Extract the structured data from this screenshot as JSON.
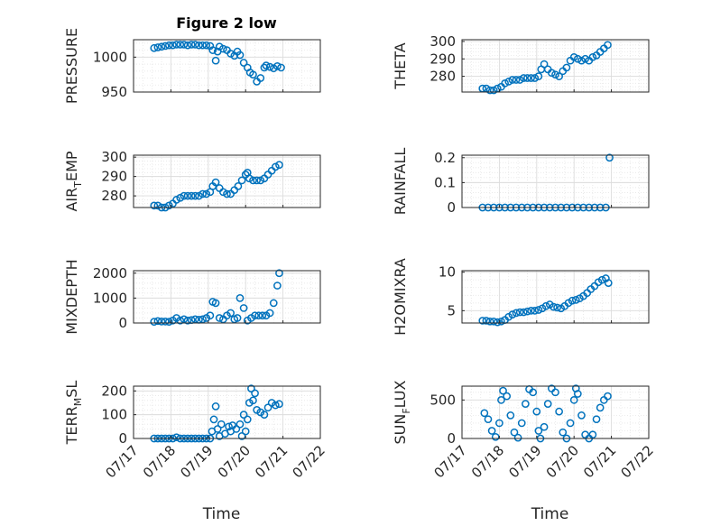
{
  "figure": {
    "title": "Figure 2 low"
  },
  "colors": {
    "marker": "#0072BD",
    "axis": "#262626",
    "grid": "#DCDCDC"
  },
  "chart_data": [
    {
      "id": "pressure",
      "type": "scatter",
      "ylabel": "PRESSURE",
      "ylabel_sub": "",
      "ylabel_post": "",
      "xlabel": "",
      "ylim": [
        950,
        1025
      ],
      "yticks": [
        950,
        1000
      ],
      "xlim": [
        0,
        5
      ],
      "xtick_labels": [
        "07/17",
        "07/18",
        "07/19",
        "07/20",
        "07/21",
        "07/22"
      ],
      "grid": true,
      "x": [
        0.55,
        0.65,
        0.75,
        0.85,
        0.95,
        1.05,
        1.15,
        1.25,
        1.35,
        1.45,
        1.55,
        1.65,
        1.75,
        1.85,
        1.95,
        2.05,
        2.12,
        2.2,
        2.25,
        2.3,
        2.4,
        2.5,
        2.6,
        2.7,
        2.78,
        2.85,
        2.95,
        3.05,
        3.12,
        3.2,
        3.3,
        3.4,
        3.5,
        3.55,
        3.65,
        3.75,
        3.85,
        3.95
      ],
      "y": [
        1013,
        1014,
        1015,
        1016,
        1017,
        1017,
        1018,
        1018,
        1018,
        1017,
        1018,
        1018,
        1017,
        1017,
        1017,
        1016,
        1010,
        995,
        1008,
        1015,
        1012,
        1010,
        1005,
        1002,
        1008,
        1003,
        992,
        985,
        978,
        975,
        965,
        970,
        985,
        988,
        986,
        984,
        987,
        985
      ]
    },
    {
      "id": "theta",
      "type": "scatter",
      "ylabel": "THETA",
      "ylabel_sub": "",
      "ylabel_post": "",
      "xlabel": "",
      "ylim": [
        271,
        301
      ],
      "yticks": [
        280,
        290,
        300
      ],
      "xlim": [
        0,
        5
      ],
      "xtick_labels": [
        "07/17",
        "07/18",
        "07/19",
        "07/20",
        "07/21",
        "07/22"
      ],
      "grid": true,
      "x": [
        0.55,
        0.65,
        0.75,
        0.85,
        0.95,
        1.05,
        1.15,
        1.25,
        1.35,
        1.45,
        1.55,
        1.65,
        1.75,
        1.85,
        1.95,
        2.05,
        2.12,
        2.2,
        2.3,
        2.4,
        2.5,
        2.6,
        2.7,
        2.8,
        2.9,
        3.0,
        3.1,
        3.2,
        3.3,
        3.4,
        3.5,
        3.6,
        3.7,
        3.8,
        3.9
      ],
      "y": [
        273,
        273,
        272,
        272,
        273,
        274,
        276,
        277,
        278,
        278,
        278,
        279,
        279,
        279,
        279,
        280,
        284,
        287,
        284,
        282,
        281,
        280,
        283,
        285,
        289,
        291,
        290,
        289,
        290,
        289,
        291,
        292,
        294,
        296,
        298
      ]
    },
    {
      "id": "air_temp",
      "type": "scatter",
      "ylabel": "AIR",
      "ylabel_sub": "T",
      "ylabel_post": "EMP",
      "xlabel": "",
      "ylim": [
        274,
        301
      ],
      "yticks": [
        280,
        290,
        300
      ],
      "xlim": [
        0,
        5
      ],
      "xtick_labels": [
        "07/17",
        "07/18",
        "07/19",
        "07/20",
        "07/21",
        "07/22"
      ],
      "grid": true,
      "x": [
        0.55,
        0.65,
        0.75,
        0.85,
        0.95,
        1.05,
        1.15,
        1.25,
        1.35,
        1.45,
        1.55,
        1.65,
        1.75,
        1.85,
        1.95,
        2.05,
        2.12,
        2.2,
        2.3,
        2.4,
        2.5,
        2.6,
        2.7,
        2.8,
        2.9,
        3.0,
        3.05,
        3.1,
        3.2,
        3.3,
        3.4,
        3.5,
        3.6,
        3.7,
        3.8,
        3.9
      ],
      "y": [
        275,
        275,
        274,
        274,
        275,
        276,
        278,
        279,
        280,
        280,
        280,
        280,
        280,
        281,
        281,
        282,
        285,
        287,
        284,
        282,
        281,
        281,
        283,
        285,
        288,
        291,
        292,
        289,
        288,
        288,
        288,
        289,
        291,
        293,
        295,
        296
      ]
    },
    {
      "id": "rainfall",
      "type": "scatter",
      "ylabel": "RAINFALL",
      "ylabel_sub": "",
      "ylabel_post": "",
      "xlabel": "",
      "ylim": [
        0,
        0.21
      ],
      "yticks": [
        0,
        0.1,
        0.2
      ],
      "xlim": [
        0,
        5
      ],
      "xtick_labels": [
        "07/17",
        "07/18",
        "07/19",
        "07/20",
        "07/21",
        "07/22"
      ],
      "grid": true,
      "x": [
        0.55,
        0.7,
        0.85,
        1.0,
        1.15,
        1.3,
        1.45,
        1.6,
        1.75,
        1.9,
        2.05,
        2.2,
        2.35,
        2.5,
        2.65,
        2.8,
        2.95,
        3.1,
        3.25,
        3.4,
        3.55,
        3.7,
        3.85,
        3.95
      ],
      "y": [
        0,
        0,
        0,
        0,
        0,
        0,
        0,
        0,
        0,
        0,
        0,
        0,
        0,
        0,
        0,
        0,
        0,
        0,
        0,
        0,
        0,
        0,
        0,
        0.2
      ]
    },
    {
      "id": "mixdepth",
      "type": "scatter",
      "ylabel": "MIXDEPTH",
      "ylabel_sub": "",
      "ylabel_post": "",
      "xlabel": "",
      "ylim": [
        0,
        2100
      ],
      "yticks": [
        0,
        1000,
        2000
      ],
      "xlim": [
        0,
        5
      ],
      "xtick_labels": [
        "07/17",
        "07/18",
        "07/19",
        "07/20",
        "07/21",
        "07/22"
      ],
      "grid": true,
      "x": [
        0.55,
        0.65,
        0.75,
        0.85,
        0.95,
        1.05,
        1.15,
        1.25,
        1.35,
        1.45,
        1.55,
        1.65,
        1.75,
        1.85,
        1.95,
        2.05,
        2.12,
        2.2,
        2.3,
        2.4,
        2.5,
        2.6,
        2.7,
        2.78,
        2.85,
        2.95,
        3.05,
        3.15,
        3.25,
        3.35,
        3.45,
        3.55,
        3.65,
        3.75,
        3.85,
        3.9
      ],
      "y": [
        50,
        80,
        60,
        60,
        50,
        100,
        200,
        100,
        150,
        100,
        120,
        150,
        130,
        150,
        200,
        300,
        850,
        800,
        200,
        150,
        300,
        400,
        150,
        200,
        1000,
        600,
        100,
        200,
        300,
        300,
        300,
        300,
        400,
        800,
        1500,
        2000
      ]
    },
    {
      "id": "h2omixra",
      "type": "scatter",
      "ylabel": "H2OMIXRA",
      "ylabel_sub": "",
      "ylabel_post": "",
      "xlabel": "",
      "ylim": [
        3.4,
        10.2
      ],
      "yticks": [
        5,
        10
      ],
      "xlim": [
        0,
        5
      ],
      "xtick_labels": [
        "07/17",
        "07/18",
        "07/19",
        "07/20",
        "07/21",
        "07/22"
      ],
      "grid": true,
      "x": [
        0.55,
        0.65,
        0.75,
        0.85,
        0.95,
        1.05,
        1.15,
        1.25,
        1.35,
        1.45,
        1.55,
        1.65,
        1.75,
        1.85,
        1.95,
        2.05,
        2.15,
        2.25,
        2.35,
        2.45,
        2.55,
        2.65,
        2.75,
        2.85,
        2.95,
        3.05,
        3.15,
        3.25,
        3.35,
        3.45,
        3.55,
        3.65,
        3.75,
        3.85,
        3.92
      ],
      "y": [
        3.7,
        3.7,
        3.6,
        3.6,
        3.5,
        3.6,
        3.8,
        4.2,
        4.5,
        4.7,
        4.8,
        4.8,
        4.9,
        5.0,
        5.0,
        5.1,
        5.3,
        5.6,
        5.8,
        5.5,
        5.4,
        5.3,
        5.6,
        6.0,
        6.3,
        6.4,
        6.6,
        6.9,
        7.3,
        7.8,
        8.2,
        8.7,
        9.0,
        9.2,
        8.6
      ]
    },
    {
      "id": "terr_msl",
      "type": "scatter",
      "ylabel": "TERR",
      "ylabel_sub": "M",
      "ylabel_post": "SL",
      "xlabel": "Time",
      "ylim": [
        0,
        220
      ],
      "yticks": [
        0,
        100,
        200
      ],
      "xlim": [
        0,
        5
      ],
      "xtick_labels": [
        "07/17",
        "07/18",
        "07/19",
        "07/20",
        "07/21",
        "07/22"
      ],
      "grid": true,
      "x": [
        0.55,
        0.65,
        0.75,
        0.85,
        0.95,
        1.05,
        1.15,
        1.25,
        1.35,
        1.45,
        1.55,
        1.65,
        1.75,
        1.85,
        1.95,
        2.05,
        2.1,
        2.15,
        2.2,
        2.25,
        2.3,
        2.35,
        2.45,
        2.55,
        2.6,
        2.65,
        2.75,
        2.85,
        2.9,
        2.95,
        3.0,
        3.05,
        3.1,
        3.15,
        3.2,
        3.25,
        3.3,
        3.4,
        3.5,
        3.6,
        3.7,
        3.8,
        3.9
      ],
      "y": [
        0,
        0,
        0,
        0,
        0,
        0,
        5,
        0,
        0,
        0,
        0,
        0,
        0,
        0,
        0,
        0,
        30,
        80,
        135,
        40,
        10,
        60,
        20,
        50,
        30,
        55,
        40,
        60,
        10,
        100,
        30,
        80,
        150,
        210,
        160,
        190,
        120,
        110,
        100,
        130,
        150,
        140,
        145
      ]
    },
    {
      "id": "sun_flux",
      "type": "scatter",
      "ylabel": "SUN",
      "ylabel_sub": "F",
      "ylabel_post": "LUX",
      "xlabel": "Time",
      "ylim": [
        0,
        680
      ],
      "yticks": [
        0,
        500
      ],
      "xlim": [
        0,
        5
      ],
      "xtick_labels": [
        "07/17",
        "07/18",
        "07/19",
        "07/20",
        "07/21",
        "07/22"
      ],
      "grid": true,
      "x": [
        0.6,
        0.7,
        0.8,
        0.9,
        1.0,
        1.05,
        1.1,
        1.2,
        1.3,
        1.4,
        1.5,
        1.6,
        1.7,
        1.8,
        1.9,
        2.0,
        2.05,
        2.1,
        2.2,
        2.3,
        2.4,
        2.5,
        2.6,
        2.7,
        2.8,
        2.9,
        3.0,
        3.05,
        3.1,
        3.2,
        3.3,
        3.4,
        3.5,
        3.6,
        3.7,
        3.8,
        3.9
      ],
      "y": [
        330,
        250,
        100,
        20,
        200,
        500,
        620,
        550,
        300,
        80,
        10,
        200,
        450,
        640,
        600,
        350,
        100,
        0,
        150,
        450,
        650,
        600,
        350,
        80,
        0,
        200,
        500,
        650,
        580,
        300,
        50,
        0,
        50,
        250,
        400,
        500,
        550
      ]
    }
  ]
}
